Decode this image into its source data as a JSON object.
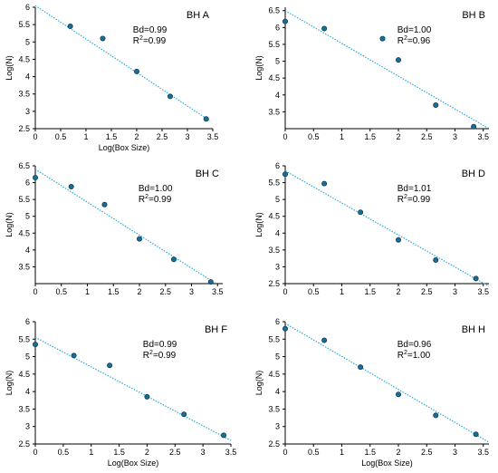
{
  "chart_data": [
    {
      "type": "scatter",
      "title": "BH A",
      "xlabel": "Log(Box Size)",
      "ylabel": "Log(N)",
      "xlim": [
        0,
        3.5
      ],
      "ylim": [
        2.5,
        6
      ],
      "xticks": [
        "0",
        "0.5",
        "1",
        "1.5",
        "2",
        "2.5",
        "3",
        "3.5"
      ],
      "yticks": [
        "2.5",
        "3",
        "3.5",
        "4",
        "4.5",
        "5",
        "5.5",
        "6"
      ],
      "points": [
        [
          0.69,
          5.45
        ],
        [
          1.33,
          5.1
        ],
        [
          2.0,
          4.15
        ],
        [
          2.66,
          3.43
        ],
        [
          3.37,
          2.78
        ]
      ],
      "fit": {
        "x0": 0,
        "y0": 6.05,
        "x1": 3.45,
        "y1": 2.72
      },
      "annotations": {
        "bd": "Bd=0.99",
        "r2_prefix": "R",
        "r2_sup": "2",
        "r2_value": "=0.99"
      }
    },
    {
      "type": "scatter",
      "title": "BH B",
      "xlabel": "",
      "ylabel": "Log(N)",
      "xlim": [
        0,
        3.6
      ],
      "ylim": [
        3.0,
        6.6
      ],
      "xticks": [
        "0",
        "0.5",
        "1",
        "1.5",
        "2",
        "2.5",
        "3",
        "3.5"
      ],
      "yticks": [
        "3.5",
        "4",
        "4.5",
        "5",
        "5.5",
        "6",
        "6.5"
      ],
      "points": [
        [
          0.0,
          6.18
        ],
        [
          0.69,
          5.97
        ],
        [
          1.72,
          5.67
        ],
        [
          2.0,
          5.04
        ],
        [
          2.66,
          3.7
        ],
        [
          3.33,
          3.06
        ]
      ],
      "fit": {
        "x0": 0,
        "y0": 6.5,
        "x1": 3.6,
        "y1": 3.0
      },
      "annotations": {
        "bd": "Bd=1.00",
        "r2_prefix": "R",
        "r2_sup": "2",
        "r2_value": "=0.96"
      }
    },
    {
      "type": "scatter",
      "title": "BH C",
      "xlabel": "",
      "ylabel": "Log(N)",
      "xlim": [
        0,
        3.6
      ],
      "ylim": [
        3.0,
        6.5
      ],
      "xticks": [
        "0",
        "0.5",
        "1",
        "1.5",
        "2",
        "2.5",
        "3",
        "3.5"
      ],
      "yticks": [
        "3.5",
        "4",
        "4.5",
        "5",
        "5.5",
        "6",
        "6.5"
      ],
      "points": [
        [
          0.0,
          6.15
        ],
        [
          0.69,
          5.88
        ],
        [
          1.33,
          5.35
        ],
        [
          2.0,
          4.33
        ],
        [
          2.66,
          3.72
        ],
        [
          3.37,
          3.05
        ]
      ],
      "fit": {
        "x0": 0,
        "y0": 6.4,
        "x1": 3.45,
        "y1": 3.02
      },
      "annotations": {
        "bd": "Bd=1.00",
        "r2_prefix": "R",
        "r2_sup": "2",
        "r2_value": "=0.99"
      }
    },
    {
      "type": "scatter",
      "title": "BH D",
      "xlabel": "",
      "ylabel": "Log(N)",
      "xlim": [
        0,
        3.6
      ],
      "ylim": [
        2.5,
        6
      ],
      "xticks": [
        "0",
        "0.5",
        "1",
        "1.5",
        "2",
        "2.5",
        "3",
        "3.5"
      ],
      "yticks": [
        "2.5",
        "3",
        "3.5",
        "4",
        "4.5",
        "5",
        "5.5",
        "6"
      ],
      "points": [
        [
          0.0,
          5.75
        ],
        [
          0.69,
          5.47
        ],
        [
          1.33,
          4.62
        ],
        [
          2.0,
          3.8
        ],
        [
          2.66,
          3.2
        ],
        [
          3.37,
          2.65
        ]
      ],
      "fit": {
        "x0": 0,
        "y0": 5.85,
        "x1": 3.6,
        "y1": 2.42
      },
      "annotations": {
        "bd": "Bd=1.01",
        "r2_prefix": "R",
        "r2_sup": "2",
        "r2_value": "=0.99"
      }
    },
    {
      "type": "scatter",
      "title": "BH F",
      "xlabel": "Log(Box Size)",
      "ylabel": "Log(N)",
      "xlim": [
        0,
        3.5
      ],
      "ylim": [
        2.5,
        6
      ],
      "xticks": [
        "0",
        "0.5",
        "1",
        "1.5",
        "2",
        "2.5",
        "3",
        "3.5"
      ],
      "yticks": [
        "2.5",
        "3",
        "3.5",
        "4",
        "4.5",
        "5",
        "5.5",
        "6"
      ],
      "points": [
        [
          0.0,
          5.35
        ],
        [
          0.69,
          5.03
        ],
        [
          1.33,
          4.75
        ],
        [
          2.0,
          3.85
        ],
        [
          2.66,
          3.35
        ],
        [
          3.37,
          2.75
        ]
      ],
      "fit": {
        "x0": 0,
        "y0": 5.55,
        "x1": 3.5,
        "y1": 2.6
      },
      "annotations": {
        "bd": "Bd=0.99",
        "r2_prefix": "R",
        "r2_sup": "2",
        "r2_value": "=0.99"
      }
    },
    {
      "type": "scatter",
      "title": "BH H",
      "xlabel": "Log(Box Size)",
      "ylabel": "Log(N)",
      "xlim": [
        0,
        3.6
      ],
      "ylim": [
        2.5,
        6
      ],
      "xticks": [
        "0",
        "0.5",
        "1",
        "1.5",
        "2",
        "2.5",
        "3",
        "3.5"
      ],
      "yticks": [
        "2.5",
        "3",
        "3.5",
        "4",
        "4.5",
        "5",
        "5.5",
        "6"
      ],
      "points": [
        [
          0.0,
          5.8
        ],
        [
          0.69,
          5.47
        ],
        [
          1.33,
          4.7
        ],
        [
          2.0,
          3.92
        ],
        [
          2.66,
          3.32
        ],
        [
          3.37,
          2.78
        ]
      ],
      "fit": {
        "x0": 0,
        "y0": 5.95,
        "x1": 3.6,
        "y1": 2.55
      },
      "annotations": {
        "bd": "Bd=0.96",
        "r2_prefix": "R",
        "r2_sup": "2",
        "r2_value": "=1.00"
      }
    }
  ]
}
